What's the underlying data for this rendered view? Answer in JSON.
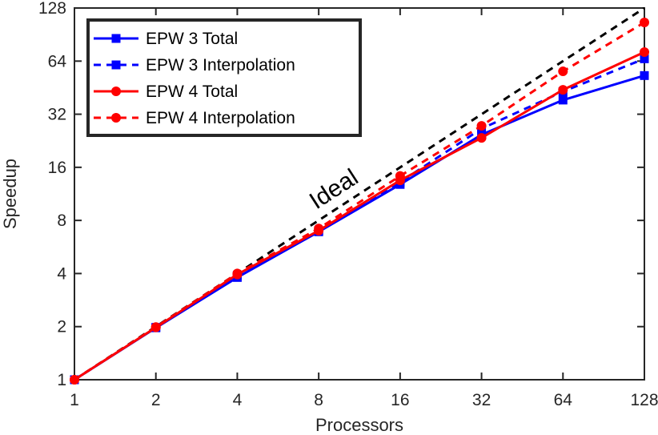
{
  "chart_data": {
    "type": "line",
    "x_scale": "log2",
    "y_scale": "log2",
    "x": [
      1,
      2,
      4,
      8,
      16,
      32,
      64,
      128
    ],
    "xlabel": "Processors",
    "ylabel": "Speedup",
    "xlim": [
      1,
      128
    ],
    "ylim": [
      1,
      128
    ],
    "x_ticks": [
      "1",
      "2",
      "4",
      "8",
      "16",
      "32",
      "64",
      "128"
    ],
    "y_ticks": [
      "1",
      "2",
      "4",
      "8",
      "16",
      "32",
      "64",
      "128"
    ],
    "grid": false,
    "legend_position": "top-left",
    "series": [
      {
        "name": "EPW 3 Total",
        "color": "#0000ff",
        "style": "solid",
        "marker": "square",
        "values": [
          1,
          1.97,
          3.8,
          6.9,
          12.8,
          24.5,
          38.5,
          53
        ]
      },
      {
        "name": "EPW 3 Interpolation",
        "color": "#0000ff",
        "style": "dashed",
        "marker": "square",
        "values": [
          1,
          1.98,
          3.9,
          7.0,
          13.2,
          26.5,
          43,
          66
        ]
      },
      {
        "name": "EPW 4 Total",
        "color": "#ff0000",
        "style": "solid",
        "marker": "circle",
        "values": [
          1,
          1.98,
          3.95,
          7.0,
          13.5,
          23.5,
          44,
          72
        ]
      },
      {
        "name": "EPW 4 Interpolation",
        "color": "#ff0000",
        "style": "dashed",
        "marker": "circle",
        "values": [
          1,
          1.99,
          4.0,
          7.2,
          14.3,
          27.5,
          56,
          106
        ]
      },
      {
        "name": "",
        "color": "#000000",
        "style": "dashed",
        "marker": "none",
        "values": [
          1,
          2,
          4,
          8,
          16,
          32,
          64,
          128
        ]
      }
    ],
    "annotations": [
      {
        "text": "Ideal"
      }
    ]
  }
}
